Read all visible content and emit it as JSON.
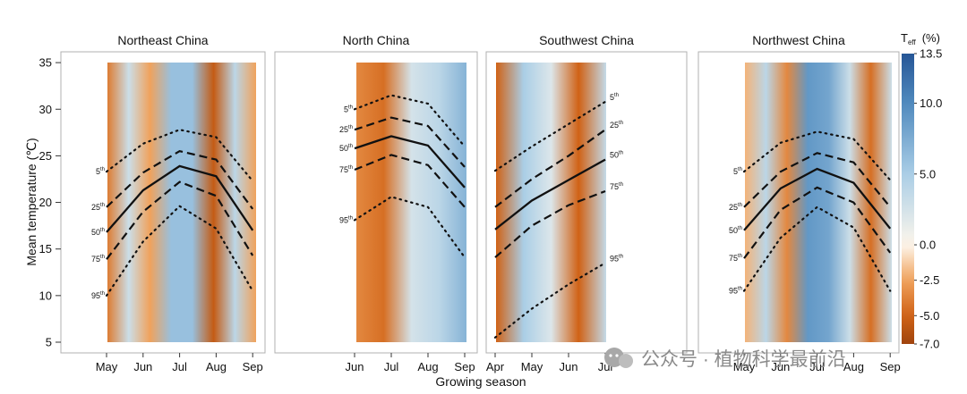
{
  "chart_data": {
    "type": "line",
    "ylabel": "Mean temperature (℃)",
    "xlabel": "Growing season",
    "ylim": [
      4,
      36
    ],
    "yticks": [
      5,
      10,
      15,
      20,
      25,
      30,
      35
    ],
    "colorbar": {
      "title_main": "T",
      "title_sub": "eff",
      "title_unit": "(%)",
      "range": [
        -7.0,
        13.5
      ],
      "ticks": [
        "13.5",
        "10.0",
        "5.0",
        "0.0",
        "-2.5",
        "-5.0",
        "-7.0"
      ],
      "tick_values": [
        13.5,
        10.0,
        5.0,
        0.0,
        -2.5,
        -5.0,
        -7.0
      ]
    },
    "panels": [
      {
        "title": "Northeast China",
        "months": [
          "May",
          "Jun",
          "Jul",
          "Aug",
          "Sep"
        ],
        "heat_cols": [
          -4,
          3,
          -2.5,
          6,
          6,
          -5.5,
          4,
          -2.5
        ],
        "series": [
          {
            "label": "5",
            "style": "dotted",
            "values": [
              23.3,
              26.3,
              27.8,
              27.0,
              22.3
            ]
          },
          {
            "label": "25",
            "style": "dashed",
            "values": [
              19.5,
              23.2,
              25.5,
              24.6,
              19.3
            ]
          },
          {
            "label": "50",
            "style": "solid",
            "values": [
              16.8,
              21.3,
              23.9,
              22.8,
              17.0
            ]
          },
          {
            "label": "75",
            "style": "dashed",
            "values": [
              13.9,
              19.0,
              22.2,
              20.7,
              14.3
            ]
          },
          {
            "label": "95",
            "style": "dotted",
            "values": [
              10.0,
              15.8,
              19.6,
              17.2,
              10.5
            ]
          }
        ]
      },
      {
        "title": "North China",
        "months": [
          "Jun",
          "Jul",
          "Aug",
          "Sep"
        ],
        "heat_cols": [
          -3.5,
          -4.5,
          2.5,
          4,
          7
        ],
        "series": [
          {
            "label": "5",
            "style": "dotted",
            "values": [
              30.0,
              31.5,
              30.6,
              26.0
            ]
          },
          {
            "label": "25",
            "style": "dashed",
            "values": [
              27.8,
              29.1,
              28.2,
              23.8
            ]
          },
          {
            "label": "50",
            "style": "solid",
            "values": [
              25.8,
              27.1,
              26.1,
              21.6
            ]
          },
          {
            "label": "75",
            "style": "dashed",
            "values": [
              23.5,
              25.1,
              24.0,
              19.5
            ]
          },
          {
            "label": "95",
            "style": "dotted",
            "values": [
              18.1,
              20.6,
              19.5,
              14.1
            ]
          }
        ]
      },
      {
        "title": "Southwest China",
        "months": [
          "Apr",
          "May",
          "Jun",
          "Jul"
        ],
        "heat_cols": [
          -5,
          5,
          2,
          -5,
          3.5
        ],
        "series": [
          {
            "label": "5",
            "style": "dotted",
            "values": [
              23.4,
              26.0,
              28.4,
              30.8
            ]
          },
          {
            "label": "25",
            "style": "dashed",
            "values": [
              19.5,
              22.5,
              25.0,
              27.8
            ]
          },
          {
            "label": "50",
            "style": "solid",
            "values": [
              17.1,
              20.2,
              22.4,
              24.6
            ]
          },
          {
            "label": "75",
            "style": "dashed",
            "values": [
              14.1,
              17.5,
              19.7,
              21.2
            ]
          },
          {
            "label": "95",
            "style": "dotted",
            "values": [
              5.5,
              8.6,
              11.2,
              13.5
            ]
          }
        ]
      },
      {
        "title": "Northwest China",
        "months": [
          "May",
          "Jun",
          "Jul",
          "Aug",
          "Sep"
        ],
        "heat_cols": [
          -2,
          4,
          -3.5,
          9,
          8,
          3,
          -4.5,
          3
        ],
        "series": [
          {
            "label": "5",
            "style": "dotted",
            "values": [
              23.3,
              26.4,
              27.6,
              26.8,
              22.4
            ]
          },
          {
            "label": "25",
            "style": "dashed",
            "values": [
              19.5,
              23.3,
              25.3,
              24.3,
              19.5
            ]
          },
          {
            "label": "50",
            "style": "solid",
            "values": [
              17.0,
              21.5,
              23.6,
              22.1,
              17.2
            ]
          },
          {
            "label": "75",
            "style": "dashed",
            "values": [
              14.0,
              19.2,
              21.6,
              20.0,
              14.6
            ]
          },
          {
            "label": "95",
            "style": "dotted",
            "values": [
              10.5,
              16.2,
              19.5,
              17.3,
              10.5
            ]
          }
        ]
      }
    ]
  },
  "watermark": "公众号 · 植物科学最前沿"
}
